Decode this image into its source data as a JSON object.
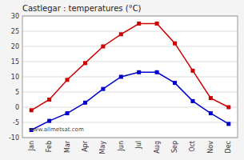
{
  "chart_data": {
    "type": "line",
    "title": "Castlegar : temperatures (°C)",
    "categories": [
      "Jan",
      "Feb",
      "Mar",
      "Apr",
      "May",
      "Jun",
      "Jul",
      "Aug",
      "Sep",
      "Oct",
      "Nov",
      "Dec"
    ],
    "series": [
      {
        "color": "#cc0000",
        "marker": "square",
        "values": [
          -1,
          2.5,
          9,
          14.5,
          20,
          24,
          27.5,
          27.5,
          21,
          12,
          3,
          0
        ]
      },
      {
        "color": "#0000cc",
        "marker": "square",
        "values": [
          -7.5,
          -4.5,
          -2,
          1.5,
          6,
          10,
          11.5,
          11.5,
          8,
          2,
          -2,
          -5.5
        ]
      }
    ],
    "ylim": [
      -10,
      30
    ],
    "yticks": [
      -10,
      -5,
      0,
      5,
      10,
      15,
      20,
      25,
      30
    ],
    "grid": true,
    "annotation": "www.allmetsat.com"
  }
}
